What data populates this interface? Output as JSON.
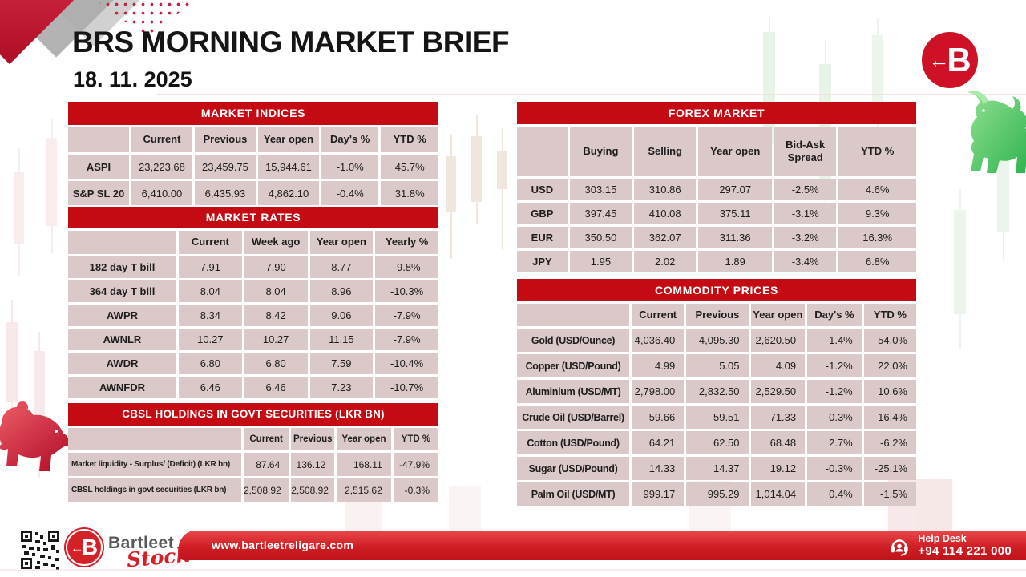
{
  "header": {
    "title": "BRS MORNING MARKET BRIEF",
    "date": "18. 11. 2025"
  },
  "brand": {
    "arrow": "←",
    "letter": "B",
    "name": "Bartleet",
    "sub": "Stock"
  },
  "tables": {
    "market_indices": {
      "title": "MARKET INDICES",
      "headers": [
        "",
        "Current",
        "Previous",
        "Year open",
        "Day's %",
        "YTD %"
      ],
      "rows": [
        {
          "label": "ASPI",
          "values": [
            "23,223.68",
            "23,459.75",
            "15,944.61",
            "-1.0%",
            "45.7%"
          ]
        },
        {
          "label": "S&P SL 20",
          "values": [
            "6,410.00",
            "6,435.93",
            "4,862.10",
            "-0.4%",
            "31.8%"
          ]
        }
      ]
    },
    "market_rates": {
      "title": "MARKET RATES",
      "headers": [
        "",
        "Current",
        "Week ago",
        "Year open",
        "Yearly %"
      ],
      "rows": [
        {
          "label": "182 day T bill",
          "values": [
            "7.91",
            "7.90",
            "8.77",
            "-9.8%"
          ]
        },
        {
          "label": "364 day T bill",
          "values": [
            "8.04",
            "8.04",
            "8.96",
            "-10.3%"
          ]
        },
        {
          "label": "AWPR",
          "values": [
            "8.34",
            "8.42",
            "9.06",
            "-7.9%"
          ]
        },
        {
          "label": "AWNLR",
          "values": [
            "10.27",
            "10.27",
            "11.15",
            "-7.9%"
          ]
        },
        {
          "label": "AWDR",
          "values": [
            "6.80",
            "6.80",
            "7.59",
            "-10.4%"
          ]
        },
        {
          "label": "AWNFDR",
          "values": [
            "6.46",
            "6.46",
            "7.23",
            "-10.7%"
          ]
        }
      ]
    },
    "cbsl": {
      "title": "CBSL HOLDINGS IN GOVT SECURITIES (LKR BN)",
      "headers": [
        "",
        "Current",
        "Previous",
        "Year open",
        "YTD %"
      ],
      "rows": [
        {
          "label": "Market liquidity - Surplus/ (Deficit) (LKR bn)",
          "values": [
            "87.64",
            "136.12",
            "168.11",
            "-47.9%"
          ]
        },
        {
          "label": "CBSL holdings in govt securities (LKR bn)",
          "values": [
            "2,508.92",
            "2,508.92",
            "2,515.62",
            "-0.3%"
          ]
        }
      ]
    },
    "forex": {
      "title": "FOREX MARKET",
      "headers": [
        "",
        "Buying",
        "Selling",
        "Year open",
        "Bid-Ask Spread",
        "YTD %"
      ],
      "rows": [
        {
          "label": "USD",
          "values": [
            "303.15",
            "310.86",
            "297.07",
            "-2.5%",
            "4.6%"
          ]
        },
        {
          "label": "GBP",
          "values": [
            "397.45",
            "410.08",
            "375.11",
            "-3.1%",
            "9.3%"
          ]
        },
        {
          "label": "EUR",
          "values": [
            "350.50",
            "362.07",
            "311.36",
            "-3.2%",
            "16.3%"
          ]
        },
        {
          "label": "JPY",
          "values": [
            "1.95",
            "2.02",
            "1.89",
            "-3.4%",
            "6.8%"
          ]
        }
      ]
    },
    "commodity": {
      "title": "COMMODITY PRICES",
      "headers": [
        "",
        "Current",
        "Previous",
        "Year open",
        "Day's %",
        "YTD %"
      ],
      "rows": [
        {
          "label": "Gold (USD/Ounce)",
          "values": [
            "4,036.40",
            "4,095.30",
            "2,620.50",
            "-1.4%",
            "54.0%"
          ]
        },
        {
          "label": "Copper (USD/Pound)",
          "values": [
            "4.99",
            "5.05",
            "4.09",
            "-1.2%",
            "22.0%"
          ]
        },
        {
          "label": "Aluminium (USD/MT)",
          "values": [
            "2,798.00",
            "2,832.50",
            "2,529.50",
            "-1.2%",
            "10.6%"
          ]
        },
        {
          "label": "Crude Oil (USD/Barrel)",
          "values": [
            "59.66",
            "59.51",
            "71.33",
            "0.3%",
            "-16.4%"
          ]
        },
        {
          "label": "Cotton (USD/Pound)",
          "values": [
            "64.21",
            "62.50",
            "68.48",
            "2.7%",
            "-6.2%"
          ]
        },
        {
          "label": "Sugar (USD/Pound)",
          "values": [
            "14.33",
            "14.37",
            "19.12",
            "-0.3%",
            "-25.1%"
          ]
        },
        {
          "label": "Palm Oil (USD/MT)",
          "values": [
            "999.17",
            "995.29",
            "1,014.04",
            "0.4%",
            "-1.5%"
          ]
        }
      ]
    }
  },
  "footer": {
    "website": "www.bartleetreligare.com",
    "helpdesk_label": "Help Desk",
    "helpdesk_phone": "+94 114 221 000"
  },
  "colors": {
    "accent_red": "#C40B14",
    "cell_bg": "#DBC8C8",
    "ribbon_red": "#D01E24",
    "bull_green": "#3CB855",
    "bear_red": "#C61730"
  }
}
